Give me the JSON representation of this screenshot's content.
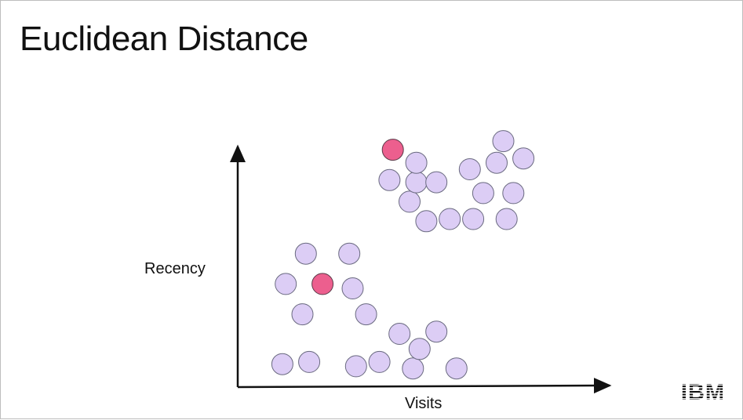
{
  "slide": {
    "title": "Euclidean Distance"
  },
  "chart_data": {
    "type": "scatter",
    "title": "",
    "xlabel": "Visits",
    "ylabel": "Recency",
    "grid": false,
    "ticks": false,
    "colors": {
      "point_fill": "#dccdf5",
      "point_stroke": "#6a6a80",
      "highlight_fill": "#ec5f8e",
      "highlight_stroke": "#5a3a48",
      "axis": "#111111"
    },
    "series": [
      {
        "points": [
          [
            0.11,
            0.07
          ],
          [
            0.19,
            0.08
          ],
          [
            0.33,
            0.06
          ],
          [
            0.4,
            0.08
          ],
          [
            0.5,
            0.05
          ],
          [
            0.63,
            0.05
          ],
          [
            0.52,
            0.14
          ],
          [
            0.57,
            0.22
          ],
          [
            0.46,
            0.21
          ],
          [
            0.36,
            0.3
          ],
          [
            0.17,
            0.3
          ],
          [
            0.12,
            0.44
          ],
          [
            0.32,
            0.42
          ],
          [
            0.18,
            0.58
          ],
          [
            0.31,
            0.58
          ],
          [
            0.54,
            0.73
          ],
          [
            0.61,
            0.74
          ],
          [
            0.49,
            0.82
          ],
          [
            0.43,
            0.92
          ],
          [
            0.51,
            0.91
          ],
          [
            0.57,
            0.91
          ],
          [
            0.51,
            1.0
          ],
          [
            0.68,
            0.74
          ],
          [
            0.78,
            0.74
          ],
          [
            0.71,
            0.86
          ],
          [
            0.8,
            0.86
          ],
          [
            0.67,
            0.97
          ],
          [
            0.75,
            1.0
          ],
          [
            0.83,
            1.02
          ],
          [
            0.77,
            1.1
          ]
        ]
      },
      {
        "highlight": true,
        "points": [
          [
            0.23,
            0.44
          ],
          [
            0.44,
            1.06
          ]
        ]
      }
    ]
  },
  "logo": {
    "text": "IBM"
  }
}
